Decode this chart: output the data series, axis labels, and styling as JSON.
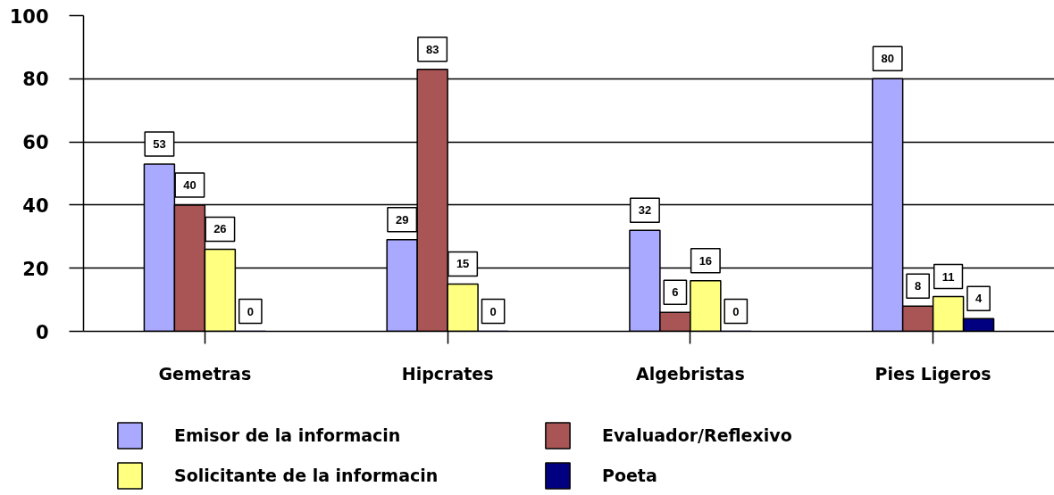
{
  "chart_data": {
    "type": "bar",
    "categories": [
      "Gemetras",
      "Hipcrates",
      "Algebristas",
      "Pies Ligeros"
    ],
    "series": [
      {
        "name": "Emisor de la informacin",
        "color": "#a9a9ff",
        "values": [
          53,
          29,
          32,
          80
        ]
      },
      {
        "name": "Evaluador/Reflexivo",
        "color": "#aa5555",
        "values": [
          40,
          83,
          6,
          8
        ]
      },
      {
        "name": "Solicitante de la informacin",
        "color": "#ffff80",
        "values": [
          26,
          15,
          16,
          11
        ]
      },
      {
        "name": "Poeta",
        "color": "#000080",
        "values": [
          0,
          0,
          0,
          4
        ]
      }
    ],
    "ylim": [
      0,
      100
    ],
    "yticks": [
      0,
      20,
      40,
      60,
      80,
      100
    ],
    "grid": "y",
    "legend": "bottom",
    "data_labels": true
  }
}
